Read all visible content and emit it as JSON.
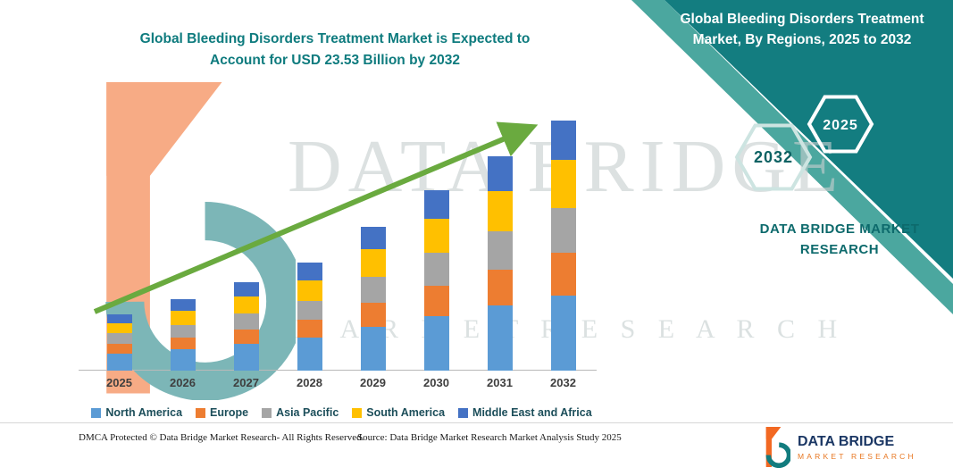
{
  "header": {
    "left_title_line1": "Global Bleeding Disorders Treatment Market is Expected to",
    "left_title_line2": "Account for USD 23.53 Billion by 2032",
    "right_title": "Global Bleeding Disorders Treatment Market, By Regions, 2025 to 2032"
  },
  "band": {
    "hexagon_labels": [
      "2032",
      "2025"
    ],
    "brand_caption": "DATA BRIDGE MARKET RESEARCH"
  },
  "watermark": {
    "line1": "DATA BRIDGE",
    "line2": "M A R K E T   R E S E A R C H"
  },
  "chart_data": {
    "type": "bar",
    "stacked": true,
    "title": "Global Bleeding Disorders Treatment Market is Expected to Account for USD 23.53 Billion by 2032",
    "unit": "USD Billion",
    "categories": [
      "2025",
      "2026",
      "2027",
      "2028",
      "2029",
      "2030",
      "2031",
      "2032"
    ],
    "series": [
      {
        "name": "North America",
        "color": "#5B9BD5",
        "values": [
          1.6,
          2.0,
          2.5,
          3.1,
          4.1,
          5.1,
          6.1,
          7.1
        ]
      },
      {
        "name": "Europe",
        "color": "#ED7D31",
        "values": [
          0.9,
          1.1,
          1.4,
          1.7,
          2.3,
          2.9,
          3.4,
          4.0
        ]
      },
      {
        "name": "Asia Pacific",
        "color": "#A5A5A5",
        "values": [
          1.0,
          1.2,
          1.5,
          1.8,
          2.4,
          3.1,
          3.6,
          4.2
        ]
      },
      {
        "name": "South America",
        "color": "#FFC000",
        "values": [
          1.0,
          1.3,
          1.6,
          1.9,
          2.6,
          3.2,
          3.8,
          4.5
        ]
      },
      {
        "name": "Middle East and Africa",
        "color": "#4472C4",
        "values": [
          0.8,
          1.1,
          1.3,
          1.7,
          2.1,
          2.7,
          3.3,
          3.73
        ]
      }
    ],
    "totals_estimated": [
      5.3,
      6.7,
      8.3,
      10.2,
      13.5,
      17.0,
      20.2,
      23.53
    ],
    "ylim": [
      0,
      23.53
    ],
    "grid": false,
    "legend_position": "bottom",
    "trend_arrow": true
  },
  "footer": {
    "dmca": "DMCA Protected © Data Bridge Market Research-  All Rights Reserved.",
    "source": "Source: Data Bridge Market Research  Market Analysis Study 2025",
    "logo_title": "DATA BRIDGE",
    "logo_subtitle": "MARKET RESEARCH"
  },
  "colors": {
    "band_teal": "#137D80",
    "band_edge_light": "#4BA79F",
    "title_teal": "#0E7B7E",
    "arrow_green": "#6AAA3F",
    "logo_orange": "#F26822",
    "logo_teal": "#127C7E",
    "logo_navy": "#1B3764",
    "hex_text_dark": "#0D6263"
  }
}
